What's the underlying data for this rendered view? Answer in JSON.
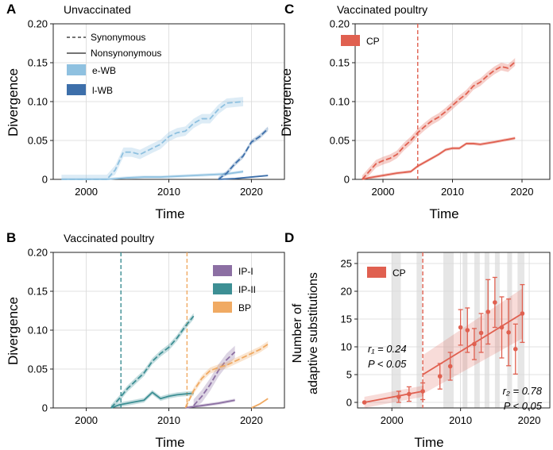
{
  "colors": {
    "e_wb": "#8fc1e0",
    "l_wb": "#3d6faa",
    "cp": "#e06050",
    "ip1": "#8c6fa3",
    "ip2": "#3d8f94",
    "bp": "#f0aa63",
    "grid": "#d9d9d9",
    "stripe": "#e6e6e6"
  },
  "chart_data": [
    {
      "panel": "A",
      "type": "line",
      "title": "Unvaccinated",
      "xlabel": "Time",
      "ylabel": "Divergence",
      "xlim": [
        1996,
        2024
      ],
      "ylim": [
        0,
        0.2
      ],
      "xticks": [
        2000,
        2010,
        2020
      ],
      "yticks": [
        0,
        0.05,
        0.1,
        0.15,
        0.2
      ],
      "xtick_labels": [
        "2000",
        "2010",
        "2020"
      ],
      "ytick_labels": [
        "0",
        "0.05",
        "0.10",
        "0.15",
        "0.20"
      ],
      "line_legend": [
        {
          "label": "Synonymous",
          "style": "dashed"
        },
        {
          "label": "Nonsynonymous",
          "style": "solid"
        }
      ],
      "legend": [
        {
          "label": "e-WB",
          "color": "e_wb"
        },
        {
          "label": "l-WB",
          "color": "l_wb"
        }
      ],
      "series": [
        {
          "name": "e-WB synonymous",
          "color": "e_wb",
          "dash": true,
          "band": 0.006,
          "x": [
            1997,
            2002.5,
            2003.5,
            2004.5,
            2005.5,
            2006.5,
            2008,
            2009,
            2010,
            2011,
            2012,
            2013,
            2014,
            2015,
            2016,
            2017,
            2019
          ],
          "y": [
            0,
            0,
            0.012,
            0.035,
            0.035,
            0.032,
            0.04,
            0.045,
            0.055,
            0.06,
            0.062,
            0.072,
            0.078,
            0.078,
            0.09,
            0.098,
            0.1
          ]
        },
        {
          "name": "e-WB nonsynonymous",
          "color": "e_wb",
          "dash": false,
          "band": 0.002,
          "x": [
            1997,
            2002.5,
            2005,
            2007,
            2009,
            2011,
            2013,
            2015,
            2017,
            2019
          ],
          "y": [
            0,
            0,
            0.002,
            0.003,
            0.003,
            0.004,
            0.005,
            0.006,
            0.007,
            0.01
          ]
        },
        {
          "name": "l-WB synonymous",
          "color": "l_wb",
          "dash": true,
          "band": 0.003,
          "x": [
            2016,
            2017,
            2018,
            2019,
            2020,
            2021,
            2022
          ],
          "y": [
            0,
            0.008,
            0.02,
            0.03,
            0.048,
            0.055,
            0.065
          ]
        },
        {
          "name": "l-WB nonsynonymous",
          "color": "l_wb",
          "dash": false,
          "band": 0.001,
          "x": [
            2016,
            2018,
            2020,
            2022
          ],
          "y": [
            0,
            0.001,
            0.003,
            0.005
          ]
        }
      ]
    },
    {
      "panel": "B",
      "type": "line",
      "title": "Vaccinated poultry",
      "xlabel": "Time",
      "ylabel": "Divergence",
      "xlim": [
        1996,
        2024
      ],
      "ylim": [
        0,
        0.2
      ],
      "xticks": [
        2000,
        2010,
        2020
      ],
      "yticks": [
        0,
        0.05,
        0.1,
        0.15,
        0.2
      ],
      "xtick_labels": [
        "2000",
        "2010",
        "2020"
      ],
      "ytick_labels": [
        "0",
        "0.05",
        "0.10",
        "0.15",
        "0.20"
      ],
      "vlines": [
        {
          "x": 2004.2,
          "color": "ip2"
        },
        {
          "x": 2012.2,
          "color": "bp"
        }
      ],
      "legend": [
        {
          "label": "IP-I",
          "color": "ip1"
        },
        {
          "label": "IP-II",
          "color": "ip2"
        },
        {
          "label": "BP",
          "color": "bp"
        }
      ],
      "series": [
        {
          "name": "IP-II synonymous",
          "color": "ip2",
          "dash": true,
          "band": 0.004,
          "x": [
            2003,
            2004,
            2005,
            2006,
            2007,
            2008,
            2009,
            2010,
            2011,
            2012,
            2013
          ],
          "y": [
            0,
            0.012,
            0.025,
            0.035,
            0.045,
            0.06,
            0.07,
            0.078,
            0.09,
            0.105,
            0.118
          ]
        },
        {
          "name": "IP-II nonsynonymous",
          "color": "ip2",
          "dash": false,
          "band": 0.003,
          "x": [
            2003,
            2004,
            2005,
            2006,
            2007,
            2008,
            2009,
            2010,
            2011,
            2012,
            2013
          ],
          "y": [
            0,
            0.004,
            0.006,
            0.008,
            0.01,
            0.02,
            0.012,
            0.015,
            0.017,
            0.018,
            0.019
          ]
        },
        {
          "name": "IP-I synonymous",
          "color": "ip1",
          "dash": true,
          "band": 0.008,
          "x": [
            2013,
            2014,
            2015,
            2016,
            2017,
            2018
          ],
          "y": [
            0.003,
            0.015,
            0.03,
            0.048,
            0.062,
            0.072
          ]
        },
        {
          "name": "IP-I nonsynonymous",
          "color": "ip1",
          "dash": false,
          "band": 0.002,
          "x": [
            2012,
            2014,
            2016,
            2018
          ],
          "y": [
            0,
            0.003,
            0.006,
            0.01
          ]
        },
        {
          "name": "BP synonymous",
          "color": "bp",
          "dash": true,
          "band": 0.004,
          "x": [
            2012,
            2013,
            2014,
            2015,
            2016,
            2017,
            2018,
            2019,
            2020,
            2021,
            2022
          ],
          "y": [
            0,
            0.022,
            0.038,
            0.048,
            0.052,
            0.055,
            0.06,
            0.065,
            0.07,
            0.075,
            0.082
          ]
        },
        {
          "name": "BP nonsynonymous",
          "color": "bp",
          "dash": false,
          "band": 0.001,
          "x": [
            2020,
            2021,
            2022
          ],
          "y": [
            0,
            0.005,
            0.012
          ]
        }
      ]
    },
    {
      "panel": "C",
      "type": "line",
      "title": "Vaccinated poultry",
      "xlabel": "Time",
      "ylabel": "Divergence",
      "xlim": [
        1996,
        2024
      ],
      "ylim": [
        0,
        0.2
      ],
      "xticks": [
        2000,
        2010,
        2020
      ],
      "yticks": [
        0,
        0.05,
        0.1,
        0.15,
        0.2
      ],
      "xtick_labels": [
        "2000",
        "2010",
        "2020"
      ],
      "ytick_labels": [
        "0",
        "0.05",
        "0.10",
        "0.15",
        "0.20"
      ],
      "vlines": [
        {
          "x": 2005,
          "color": "cp"
        }
      ],
      "legend": [
        {
          "label": "CP",
          "color": "cp"
        }
      ],
      "series": [
        {
          "name": "CP synonymous",
          "color": "cp",
          "dash": true,
          "band": 0.005,
          "x": [
            1997,
            1998,
            1999,
            2000,
            2001,
            2002,
            2003,
            2004,
            2005,
            2006,
            2007,
            2008,
            2009,
            2010,
            2011,
            2012,
            2013,
            2014,
            2015,
            2016,
            2017,
            2018,
            2019
          ],
          "y": [
            0,
            0.01,
            0.02,
            0.024,
            0.027,
            0.032,
            0.042,
            0.05,
            0.06,
            0.068,
            0.075,
            0.08,
            0.087,
            0.095,
            0.103,
            0.11,
            0.12,
            0.125,
            0.133,
            0.14,
            0.145,
            0.143,
            0.151
          ]
        },
        {
          "name": "CP nonsynonymous",
          "color": "cp",
          "dash": false,
          "band": 0.002,
          "x": [
            1997,
            1998,
            2000,
            2002,
            2004,
            2005,
            2006,
            2007,
            2008,
            2009,
            2010,
            2011,
            2012,
            2013,
            2014,
            2016,
            2019
          ],
          "y": [
            0,
            0.002,
            0.005,
            0.008,
            0.01,
            0.017,
            0.022,
            0.027,
            0.032,
            0.038,
            0.04,
            0.04,
            0.046,
            0.046,
            0.045,
            0.048,
            0.053
          ]
        }
      ]
    },
    {
      "panel": "D",
      "type": "scatter",
      "xlabel": "Time",
      "ylabel": [
        "Number of",
        "adaptive substitutions"
      ],
      "xlim": [
        1995,
        2023
      ],
      "ylim": [
        -1,
        27
      ],
      "xticks": [
        2000,
        2010,
        2020
      ],
      "yticks": [
        0,
        5,
        10,
        15,
        20,
        25
      ],
      "xtick_labels": [
        "2000",
        "2010",
        "2020"
      ],
      "ytick_labels": [
        "0",
        "5",
        "10",
        "15",
        "20",
        "25"
      ],
      "vlines": [
        {
          "x": 2004.5,
          "color": "cp"
        }
      ],
      "stripes": [
        [
          2000,
          2001.3
        ],
        [
          2003.6,
          2004.4
        ],
        [
          2007.5,
          2009
        ],
        [
          2010.3,
          2011
        ],
        [
          2012,
          2012.8
        ],
        [
          2013.5,
          2014.2
        ],
        [
          2015,
          2015.7
        ],
        [
          2016.8,
          2017.5
        ],
        [
          2018.3,
          2019.3
        ]
      ],
      "legend": [
        {
          "label": "CP",
          "color": "cp"
        }
      ],
      "annotations": [
        {
          "lines": [
            "r₁ = 0.24",
            "P < 0.05"
          ],
          "anchor": "left",
          "x": 1996,
          "y": 8
        },
        {
          "lines": [
            "r₂ = 0.78",
            "P < 0.05"
          ],
          "anchor": "right",
          "x": 2022.5,
          "y": 1.5
        }
      ],
      "fit_lines": [
        {
          "x": [
            1996,
            2004.5
          ],
          "y": [
            0,
            2
          ],
          "band": 1
        },
        {
          "x": [
            2004.5,
            2019
          ],
          "y": [
            5,
            16
          ],
          "band": [
            3.5,
            4.5
          ]
        }
      ],
      "points": [
        {
          "x": 1996,
          "y": 0,
          "err": 0
        },
        {
          "x": 2001,
          "y": 1,
          "err": 1
        },
        {
          "x": 2002.5,
          "y": 1.5,
          "err": 1.3
        },
        {
          "x": 2004.5,
          "y": 2,
          "err": 1.5
        },
        {
          "x": 2007,
          "y": 4.7,
          "err": 2.3
        },
        {
          "x": 2008.5,
          "y": 6.5,
          "err": 2.5
        },
        {
          "x": 2010,
          "y": 13.5,
          "err": 3.2
        },
        {
          "x": 2011,
          "y": 13,
          "err": 4
        },
        {
          "x": 2012,
          "y": 10.5,
          "err": 2.8
        },
        {
          "x": 2013,
          "y": 12.5,
          "err": 3.5
        },
        {
          "x": 2014,
          "y": 16.3,
          "err": 5.8
        },
        {
          "x": 2015,
          "y": 18,
          "err": 4.5
        },
        {
          "x": 2016,
          "y": 13.5,
          "err": 5.5
        },
        {
          "x": 2017,
          "y": 12.6,
          "err": 6
        },
        {
          "x": 2018,
          "y": 9.6,
          "err": 4.5
        },
        {
          "x": 2019,
          "y": 16,
          "err": 5.2
        }
      ]
    }
  ]
}
